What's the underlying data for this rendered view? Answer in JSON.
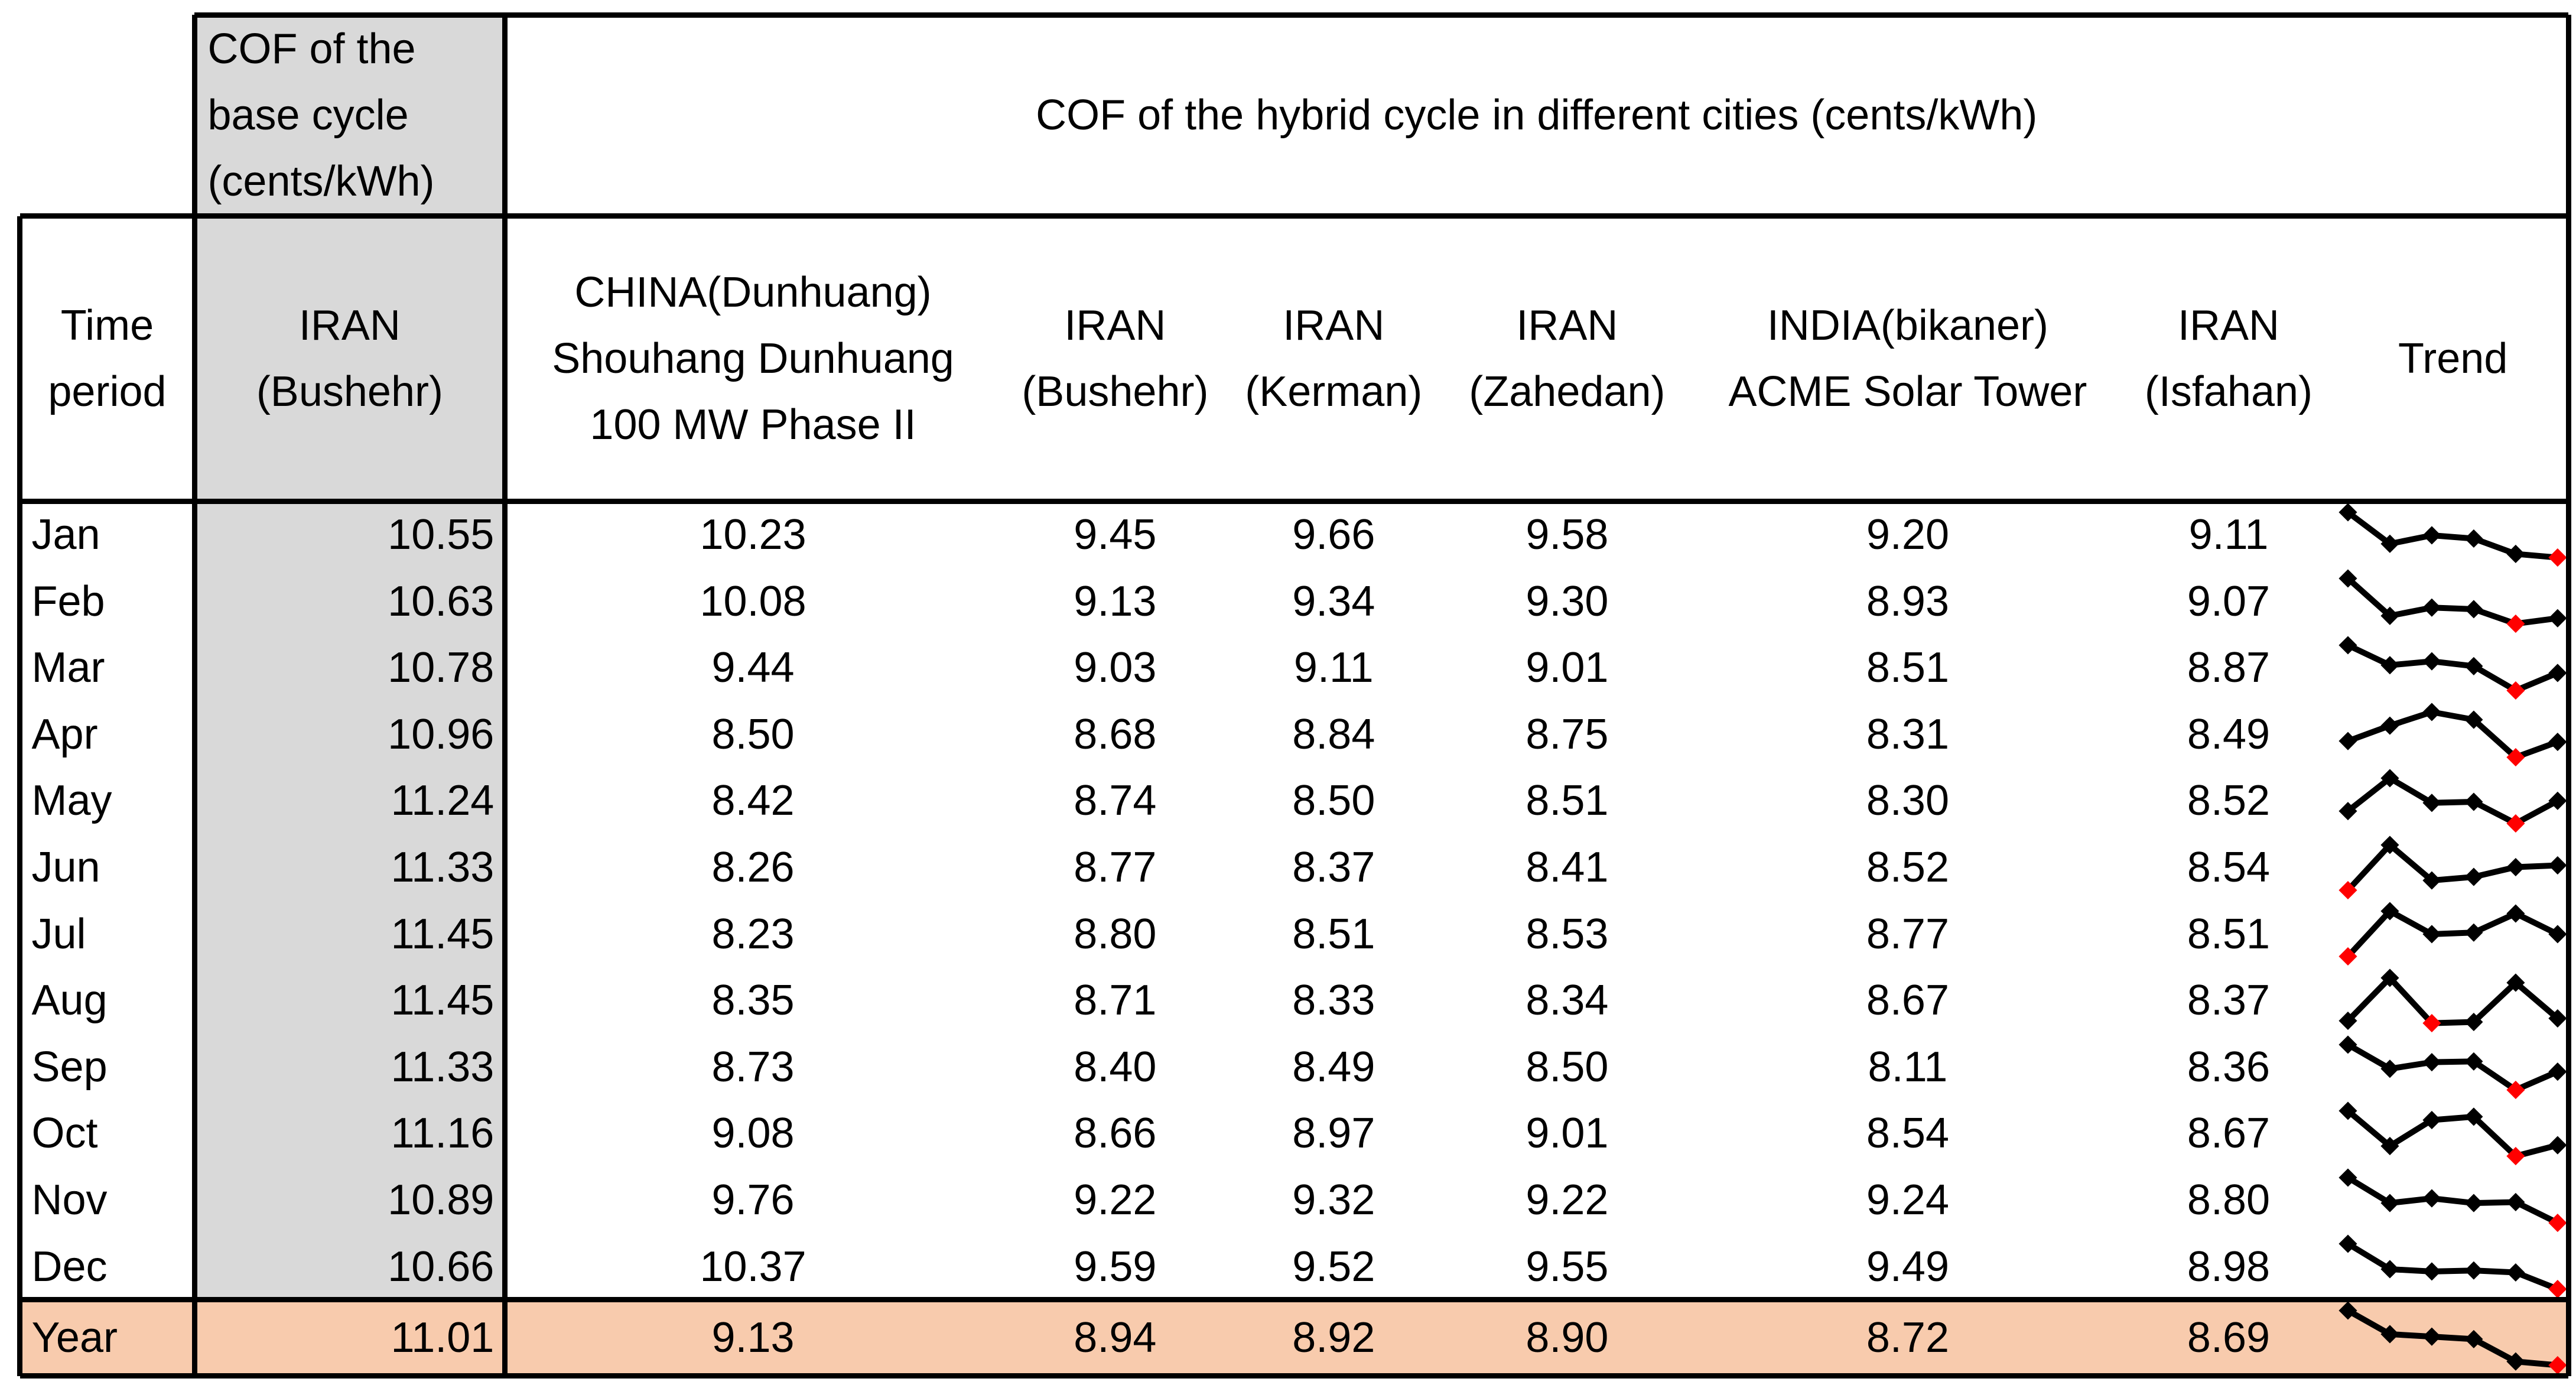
{
  "header": {
    "base_group": "COF of the base cycle (cents/kWh)",
    "base_group_lines": [
      "COF of the",
      "base cycle",
      "(cents/kWh)"
    ],
    "hybrid_group": "COF of the hybrid cycle  in different cities (cents/kWh)",
    "time_period_lines": [
      "Time",
      "period"
    ],
    "base_column_lines": [
      "IRAN",
      "(Bushehr)"
    ],
    "hybrid_columns": [
      {
        "lines": [
          "CHINA(Dunhuang)",
          "Shouhang Dunhuang",
          "100 MW Phase II"
        ]
      },
      {
        "lines": [
          "IRAN",
          "(Bushehr)"
        ]
      },
      {
        "lines": [
          "IRAN",
          "(Kerman)"
        ]
      },
      {
        "lines": [
          "IRAN",
          "(Zahedan)"
        ]
      },
      {
        "lines": [
          "INDIA(bikaner)",
          "ACME Solar Tower"
        ]
      },
      {
        "lines": [
          "IRAN",
          "(Isfahan)"
        ]
      }
    ],
    "trend_label": "Trend"
  },
  "rows": [
    {
      "period": "Jan",
      "base": "10.55",
      "hybrid": [
        "10.23",
        "9.45",
        "9.66",
        "9.58",
        "9.20",
        "9.11"
      ]
    },
    {
      "period": "Feb",
      "base": "10.63",
      "hybrid": [
        "10.08",
        "9.13",
        "9.34",
        "9.30",
        "8.93",
        "9.07"
      ]
    },
    {
      "period": "Mar",
      "base": "10.78",
      "hybrid": [
        "9.44",
        "9.03",
        "9.11",
        "9.01",
        "8.51",
        "8.87"
      ]
    },
    {
      "period": "Apr",
      "base": "10.96",
      "hybrid": [
        "8.50",
        "8.68",
        "8.84",
        "8.75",
        "8.31",
        "8.49"
      ]
    },
    {
      "period": "May",
      "base": "11.24",
      "hybrid": [
        "8.42",
        "8.74",
        "8.50",
        "8.51",
        "8.30",
        "8.52"
      ]
    },
    {
      "period": "Jun",
      "base": "11.33",
      "hybrid": [
        "8.26",
        "8.77",
        "8.37",
        "8.41",
        "8.52",
        "8.54"
      ]
    },
    {
      "period": "Jul",
      "base": "11.45",
      "hybrid": [
        "8.23",
        "8.80",
        "8.51",
        "8.53",
        "8.77",
        "8.51"
      ]
    },
    {
      "period": "Aug",
      "base": "11.45",
      "hybrid": [
        "8.35",
        "8.71",
        "8.33",
        "8.34",
        "8.67",
        "8.37"
      ]
    },
    {
      "period": "Sep",
      "base": "11.33",
      "hybrid": [
        "8.73",
        "8.40",
        "8.49",
        "8.50",
        "8.11",
        "8.36"
      ]
    },
    {
      "period": "Oct",
      "base": "11.16",
      "hybrid": [
        "9.08",
        "8.66",
        "8.97",
        "9.01",
        "8.54",
        "8.67"
      ]
    },
    {
      "period": "Nov",
      "base": "10.89",
      "hybrid": [
        "9.76",
        "9.22",
        "9.32",
        "9.22",
        "9.24",
        "8.80"
      ]
    },
    {
      "period": "Dec",
      "base": "10.66",
      "hybrid": [
        "10.37",
        "9.59",
        "9.52",
        "9.55",
        "9.49",
        "8.98"
      ]
    }
  ],
  "year_row": {
    "period": "Year",
    "base": "11.01",
    "hybrid": [
      "9.13",
      "8.94",
      "8.92",
      "8.90",
      "8.72",
      "8.69"
    ]
  },
  "colors": {
    "base_column_fill": "#d9d9d9",
    "year_row_fill": "#f8cbad",
    "sparkline": "#000000",
    "sparkline_min_marker": "#ff0000"
  }
}
